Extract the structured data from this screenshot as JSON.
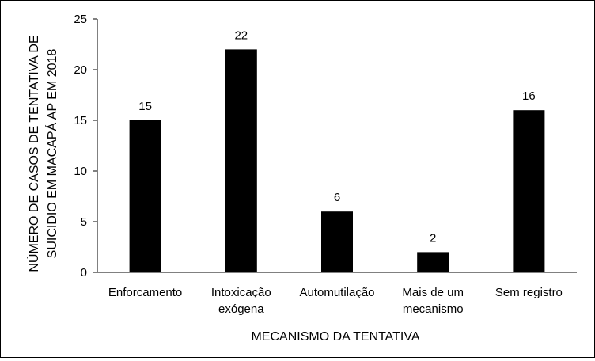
{
  "chart_data": {
    "type": "bar",
    "categories": [
      [
        "Enforcamento"
      ],
      [
        "Intoxicação",
        "exógena"
      ],
      [
        "Automutilação"
      ],
      [
        "Mais de um",
        "mecanismo"
      ],
      [
        "Sem registro"
      ]
    ],
    "values": [
      15,
      22,
      6,
      2,
      16
    ],
    "data_labels": [
      "15",
      "22",
      "6",
      "2",
      "16"
    ],
    "title": "",
    "xlabel": "MECANISMO DA TENTATIVA",
    "ylabel": [
      "NÚMERO DE CASOS DE TENTATIVA DE",
      "SUICIDIO EM MACAPÁ AP EM 2018"
    ],
    "ylim": [
      0,
      25
    ],
    "yticks": [
      0,
      5,
      10,
      15,
      20,
      25
    ],
    "grid": false,
    "legend": "none",
    "bar_color": "#000000"
  }
}
